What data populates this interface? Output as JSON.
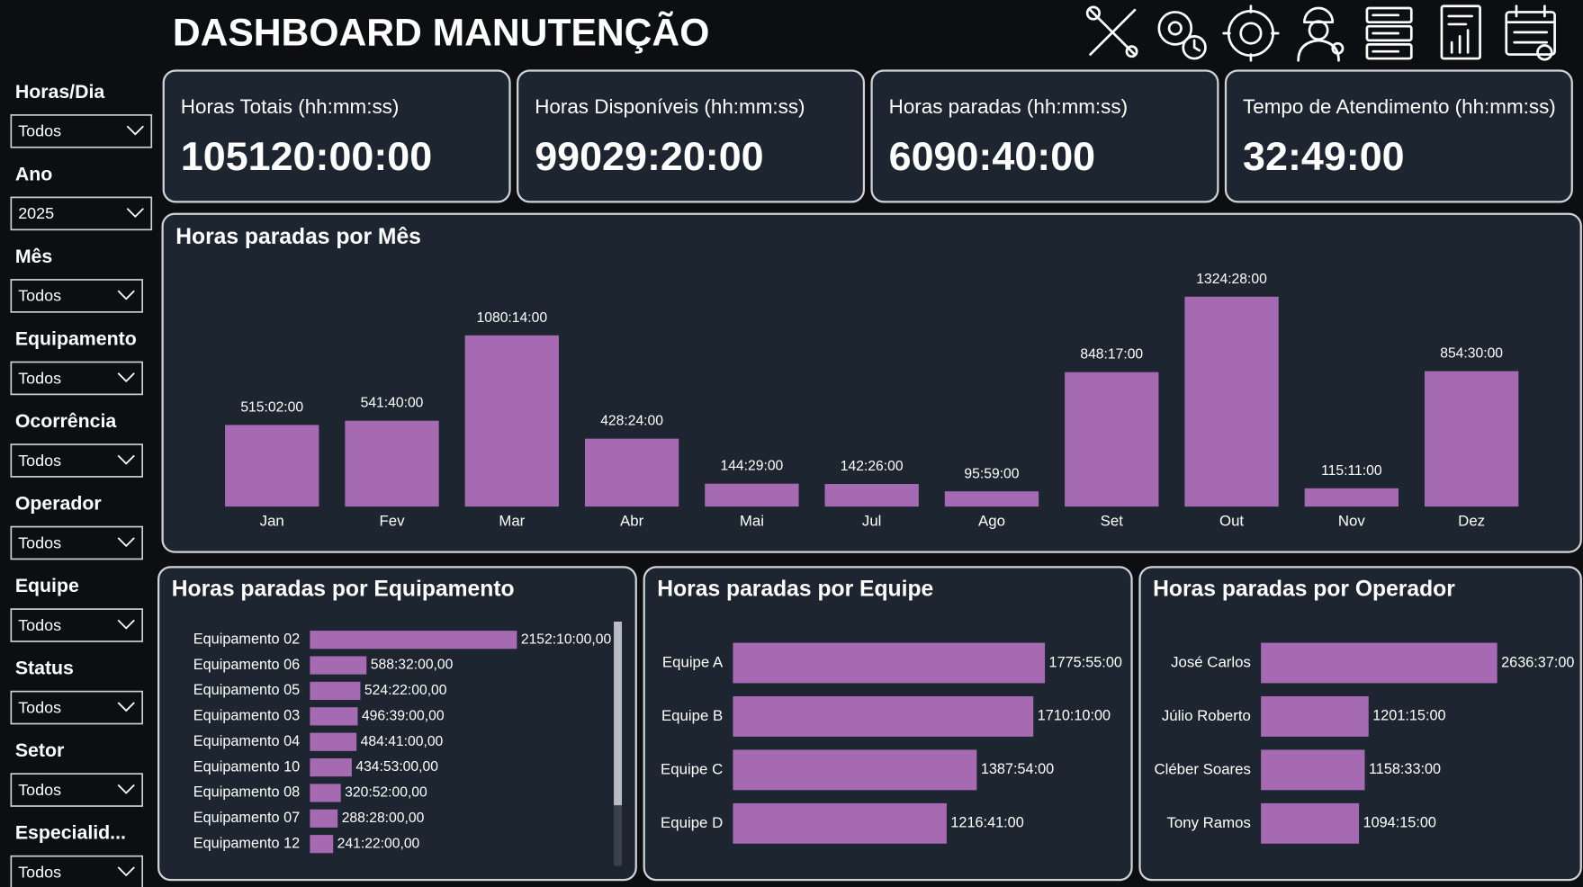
{
  "header": {
    "title": "DASHBOARD MANUTENÇÃO"
  },
  "filters": [
    {
      "label": "Horas/Dia",
      "value": "Todos"
    },
    {
      "label": "Ano",
      "value": "2025"
    },
    {
      "label": "Mês",
      "value": "Todos"
    },
    {
      "label": "Equipamento",
      "value": "Todos"
    },
    {
      "label": "Ocorrência",
      "value": "Todos"
    },
    {
      "label": "Operador",
      "value": "Todos"
    },
    {
      "label": "Equipe",
      "value": "Todos"
    },
    {
      "label": "Status",
      "value": "Todos"
    },
    {
      "label": "Setor",
      "value": "Todos"
    },
    {
      "label": "Especialid...",
      "value": "Todos"
    }
  ],
  "kpis": [
    {
      "label": "Horas Totais (hh:mm:ss)",
      "value": "105120:00:00"
    },
    {
      "label": "Horas Disponíveis (hh:mm:ss)",
      "value": "99029:20:00"
    },
    {
      "label": "Horas paradas (hh:mm:ss)",
      "value": "6090:40:00"
    },
    {
      "label": "Tempo de Atendimento (hh:mm:ss)",
      "value": "32:49:00"
    }
  ],
  "chart_data": [
    {
      "type": "bar",
      "title": "Horas paradas por Mês",
      "color": "#a66ab3",
      "categories": [
        "Jan",
        "Fev",
        "Mar",
        "Abr",
        "Mai",
        "Jul",
        "Ago",
        "Set",
        "Out",
        "Nov",
        "Dez"
      ],
      "values": [
        515.0333,
        541.6667,
        1080.2333,
        428.4,
        144.4833,
        142.4333,
        95.9833,
        848.2833,
        1324.4667,
        115.1833,
        854.5
      ],
      "value_labels": [
        "515:02:00",
        "541:40:00",
        "1080:14:00",
        "428:24:00",
        "144:29:00",
        "142:26:00",
        "95:59:00",
        "848:17:00",
        "1324:28:00",
        "115:11:00",
        "854:30:00"
      ]
    },
    {
      "type": "hbar",
      "title": "Horas paradas por Equipamento",
      "color": "#a66ab3",
      "categories": [
        "Equipamento 02",
        "Equipamento 06",
        "Equipamento 05",
        "Equipamento 03",
        "Equipamento 04",
        "Equipamento 10",
        "Equipamento 08",
        "Equipamento 07",
        "Equipamento 12"
      ],
      "values": [
        2152.1667,
        588.5333,
        524.3667,
        496.65,
        484.6833,
        434.8833,
        320.8667,
        288.4667,
        241.3667
      ],
      "value_labels": [
        "2152:10:00,00",
        "588:32:00,00",
        "524:22:00,00",
        "496:39:00,00",
        "484:41:00,00",
        "434:53:00,00",
        "320:52:00,00",
        "288:28:00,00",
        "241:22:00,00"
      ]
    },
    {
      "type": "hbar",
      "title": "Horas paradas por Equipe",
      "color": "#a66ab3",
      "categories": [
        "Equipe A",
        "Equipe B",
        "Equipe C",
        "Equipe D"
      ],
      "values": [
        1775.9167,
        1710.1667,
        1387.9,
        1216.6833
      ],
      "value_labels": [
        "1775:55:00",
        "1710:10:00",
        "1387:54:00",
        "1216:41:00"
      ]
    },
    {
      "type": "hbar",
      "title": "Horas paradas por Operador",
      "color": "#a66ab3",
      "categories": [
        "José Carlos",
        "Júlio Roberto",
        "Cléber Soares",
        "Tony Ramos"
      ],
      "values": [
        2636.6167,
        1201.25,
        1158.55,
        1094.25
      ],
      "value_labels": [
        "2636:37:00",
        "1201:15:00",
        "1158:33:00",
        "1094:15:00"
      ]
    }
  ]
}
